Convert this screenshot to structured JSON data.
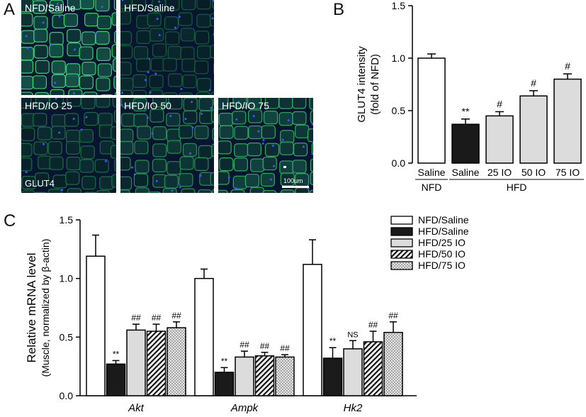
{
  "panel_a": {
    "letter": "A",
    "stain_label": "GLUT4",
    "scale_bar_label": "100um",
    "images": [
      {
        "label": "NFD/Saline",
        "intensity": 1.0
      },
      {
        "label": "HFD/Saline",
        "intensity": 0.37
      },
      {
        "label": "HFD/IO 25",
        "intensity": 0.45
      },
      {
        "label": "HFD/IO 50",
        "intensity": 0.64
      },
      {
        "label": "HFD/IO 75",
        "intensity": 0.8
      }
    ]
  },
  "panel_b": {
    "letter": "B"
  },
  "panel_c": {
    "letter": "C"
  },
  "chart_data": [
    {
      "type": "bar",
      "ylabel_lines": [
        "GLUT4 intensity",
        "(fold of NFD)"
      ],
      "ylim": [
        0.0,
        1.5
      ],
      "yticks": [
        "0.0",
        "0.5",
        "1.0",
        "1.5"
      ],
      "categories": [
        "Saline",
        "Saline",
        "25 IO",
        "50  IO",
        "75 IO"
      ],
      "groups": [
        {
          "label": "NFD",
          "span": [
            0,
            0
          ]
        },
        {
          "label": "HFD",
          "span": [
            1,
            4
          ]
        }
      ],
      "values": [
        1.0,
        0.37,
        0.45,
        0.64,
        0.8
      ],
      "errors": [
        0.04,
        0.05,
        0.04,
        0.05,
        0.05
      ],
      "annotations": [
        "",
        "**",
        "#",
        "#",
        "#"
      ],
      "fills": [
        "#ffffff",
        "#1a1a1a",
        "#dcdcdc",
        "#dcdcdc",
        "#dcdcdc"
      ]
    },
    {
      "type": "bar",
      "ylabel_lines": [
        "Relative mRNA level",
        "(Muscle, normalized by β-actin)"
      ],
      "ylim": [
        0.0,
        1.5
      ],
      "yticks": [
        "0.0",
        "0.5",
        "1.0",
        "1.5"
      ],
      "categories": [
        "Akt",
        "Ampk",
        "Hk2"
      ],
      "legend_position": "top-right",
      "series": [
        {
          "name": "NFD/Saline",
          "pattern": "white",
          "values": [
            1.19,
            1.0,
            1.12
          ],
          "errors": [
            0.18,
            0.08,
            0.21
          ],
          "annotations": [
            "",
            "",
            ""
          ]
        },
        {
          "name": "HFD/Saline",
          "pattern": "black",
          "values": [
            0.27,
            0.2,
            0.32
          ],
          "errors": [
            0.03,
            0.04,
            0.09
          ],
          "annotations": [
            "**",
            "**",
            "**"
          ]
        },
        {
          "name": "HFD/25 IO",
          "pattern": "gray",
          "values": [
            0.56,
            0.33,
            0.4
          ],
          "errors": [
            0.05,
            0.05,
            0.07
          ],
          "annotations": [
            "##",
            "##",
            "NS"
          ]
        },
        {
          "name": "HFD/50 IO",
          "pattern": "hatch",
          "values": [
            0.55,
            0.34,
            0.46
          ],
          "errors": [
            0.06,
            0.03,
            0.09
          ],
          "annotations": [
            "##",
            "##",
            "##"
          ]
        },
        {
          "name": "HFD/75 IO",
          "pattern": "dots",
          "values": [
            0.58,
            0.33,
            0.54
          ],
          "errors": [
            0.05,
            0.02,
            0.09
          ],
          "annotations": [
            "##",
            "##",
            "##"
          ]
        }
      ]
    }
  ]
}
